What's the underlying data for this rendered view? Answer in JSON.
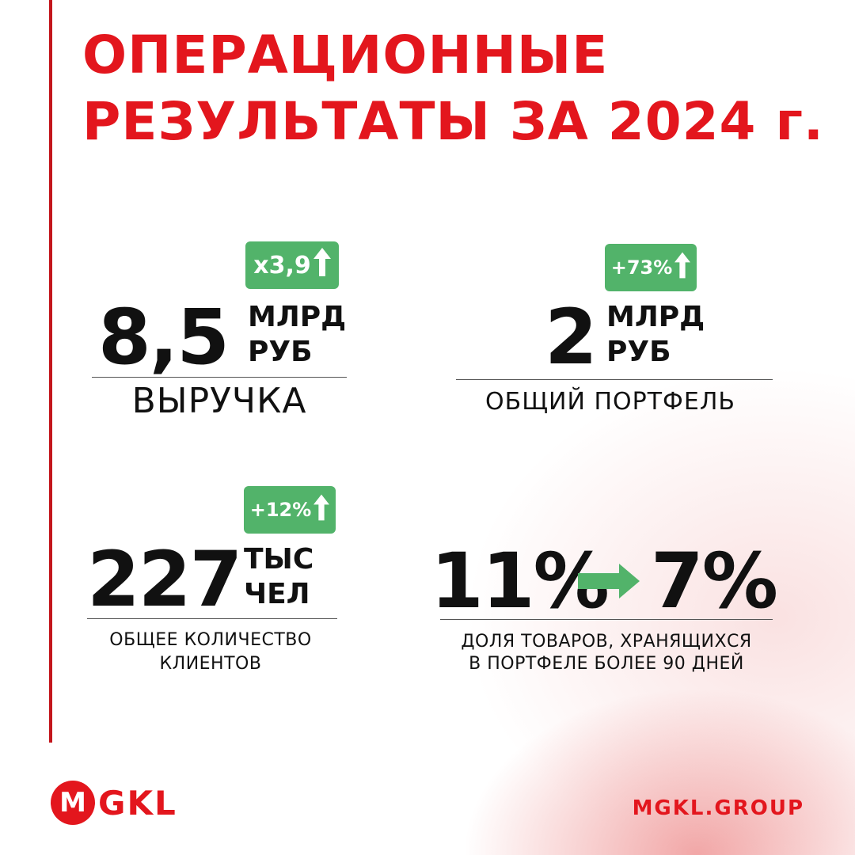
{
  "title": {
    "line1": "ОПЕРАЦИОННЫЕ",
    "line2": "РЕЗУЛЬТАТЫ ЗА 2024 г."
  },
  "metrics": [
    {
      "badge": "x3,9",
      "value": "8,5",
      "unit_line1": "МЛРД",
      "unit_line2": "РУБ",
      "label": "ВЫРУЧКА"
    },
    {
      "badge": "+73%",
      "value": "2",
      "unit_line1": "МЛРД",
      "unit_line2": "РУБ",
      "label": "ОБЩИЙ ПОРТФЕЛЬ"
    },
    {
      "badge": "+12%",
      "value": "227",
      "unit_line1": "ТЫС",
      "unit_line2": "ЧЕЛ",
      "label_line1": "ОБЩЕЕ КОЛИЧЕСТВО",
      "label_line2": "КЛИЕНТОВ"
    },
    {
      "value_from": "11%",
      "value_to": "7%",
      "label_line1": "ДОЛЯ ТОВАРОВ, ХРАНЯЩИХСЯ",
      "label_line2": "В ПОРТФЕЛЕ БОЛЕЕ 90 ДНЕЙ"
    }
  ],
  "footer": {
    "logo_letter": "M",
    "logo_text": "GKL",
    "website": "MGKL.GROUP"
  },
  "colors": {
    "accent_red": "#e3161d",
    "badge_green": "#52b36a"
  },
  "icons": {
    "badge_arrow": "arrow-up-icon",
    "transition_arrow": "arrow-right-icon"
  }
}
